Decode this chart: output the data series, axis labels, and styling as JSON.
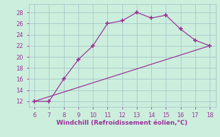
{
  "line1_x": [
    6,
    7,
    8,
    9,
    10,
    11,
    12,
    13,
    14,
    15,
    16,
    17,
    18
  ],
  "line1_y": [
    12,
    12,
    16,
    19.5,
    22,
    26,
    26.5,
    28,
    27,
    27.5,
    25,
    23,
    22
  ],
  "line2_x": [
    6,
    18
  ],
  "line2_y": [
    12,
    22
  ],
  "line_color": "#993399",
  "background_color": "#cceedd",
  "grid_color": "#aacccc",
  "xlabel": "Windchill (Refroidissement éolien,°C)",
  "xlim": [
    5.6,
    18.4
  ],
  "ylim": [
    11.0,
    29.5
  ],
  "xticks": [
    6,
    7,
    8,
    9,
    10,
    11,
    12,
    13,
    14,
    15,
    16,
    17,
    18
  ],
  "yticks": [
    12,
    14,
    16,
    18,
    20,
    22,
    24,
    26,
    28
  ],
  "tick_fontsize": 6.0,
  "label_fontsize": 6.5,
  "marker": "+"
}
